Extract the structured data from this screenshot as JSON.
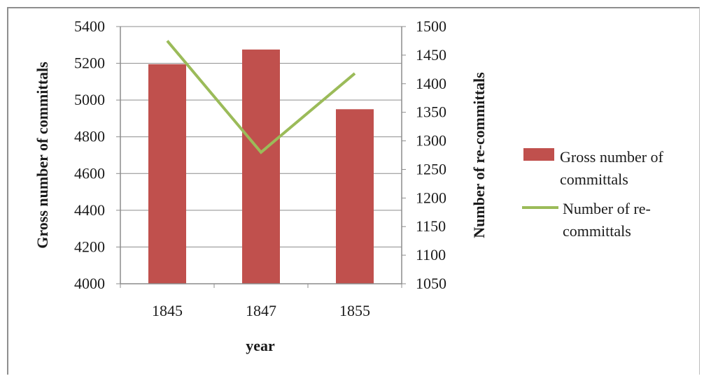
{
  "chart_data": {
    "type": "bar",
    "categories": [
      "1845",
      "1847",
      "1855"
    ],
    "series": [
      {
        "name": "Gross number of committals",
        "type": "bar",
        "axis": "left",
        "values": [
          5195,
          5275,
          4950
        ],
        "color": "#c0504d"
      },
      {
        "name": "Number of re-committals",
        "type": "line",
        "axis": "right",
        "values": [
          1475,
          1280,
          1418
        ],
        "color": "#9bbb59"
      }
    ],
    "xlabel": "year",
    "ylabel": "Gross number of committals",
    "y2label": "Number of re-committals",
    "ylim": [
      4000,
      5400
    ],
    "y2lim": [
      1050,
      1500
    ],
    "yticks": [
      "4000",
      "4200",
      "4400",
      "4600",
      "4800",
      "5000",
      "5200",
      "5400"
    ],
    "y2ticks": [
      "1050",
      "1100",
      "1150",
      "1200",
      "1250",
      "1300",
      "1350",
      "1400",
      "1450",
      "1500"
    ],
    "grid": true,
    "legend": {
      "position": "right",
      "entries": [
        {
          "lines": [
            "Gross number of",
            "committals"
          ],
          "marker": "bar",
          "color": "#c0504d"
        },
        {
          "lines": [
            "Number of re-",
            "committals"
          ],
          "marker": "line",
          "color": "#9bbb59"
        }
      ]
    }
  }
}
